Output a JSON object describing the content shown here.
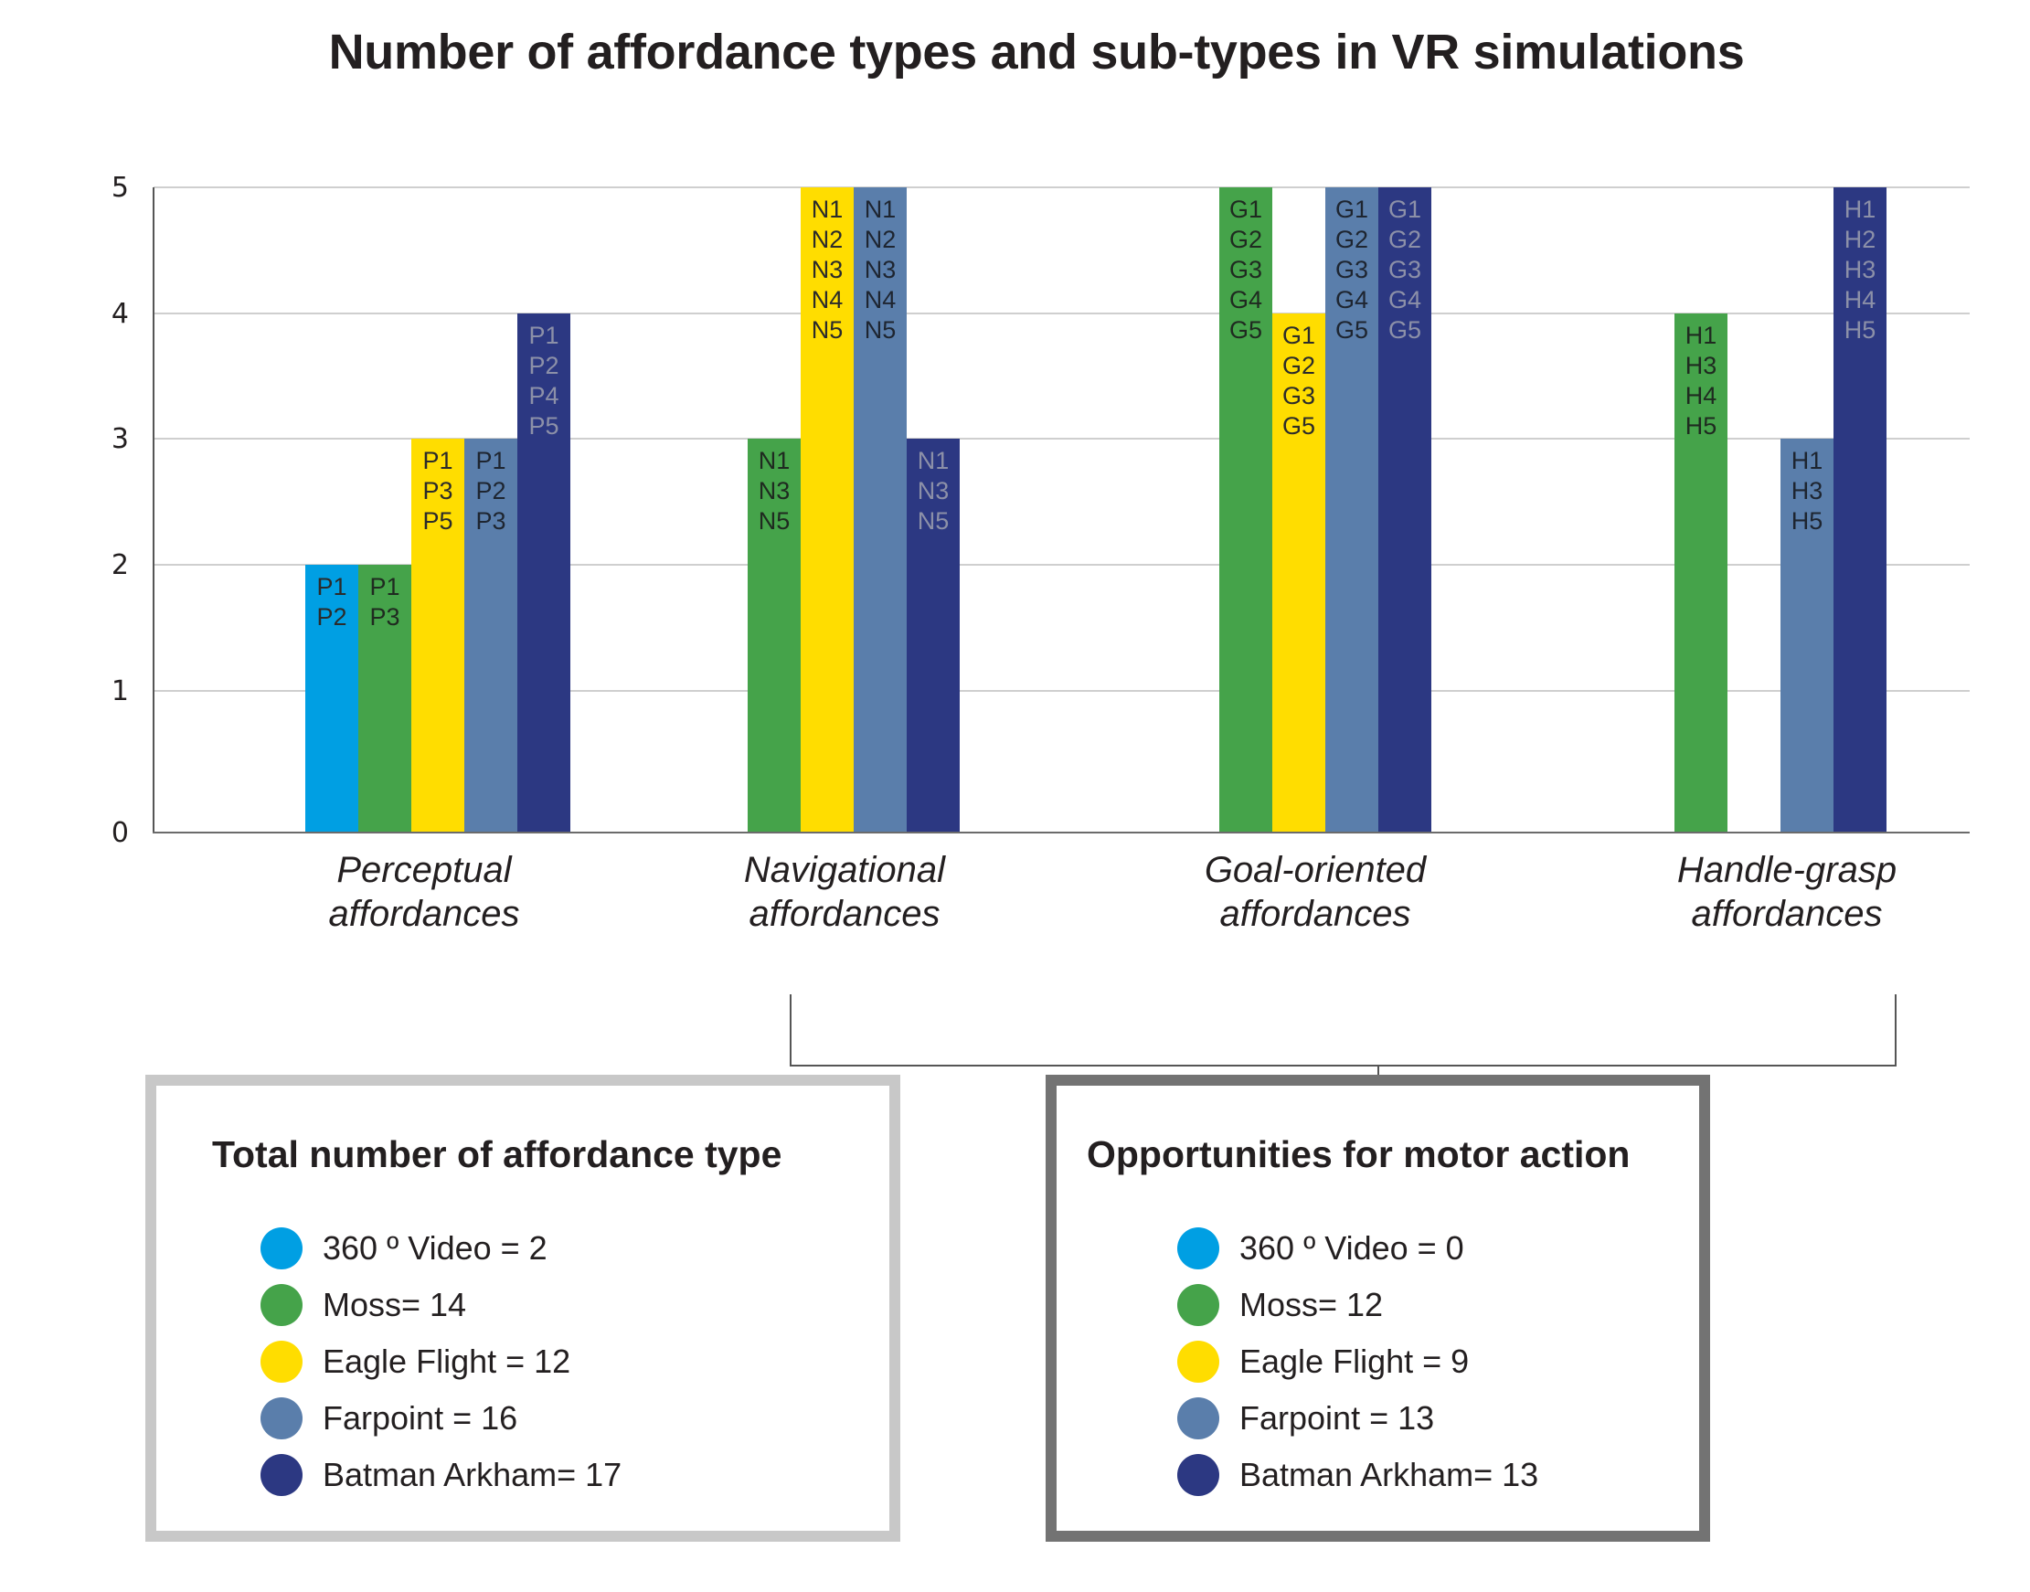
{
  "title": "Number of affordance types and sub-types in VR simulations",
  "chart_data": {
    "type": "bar",
    "title": "Number of affordance types and sub-types in VR simulations",
    "xlabel": "",
    "ylabel": "",
    "ylim": [
      0,
      5
    ],
    "yticks": [
      "0",
      "1",
      "2",
      "3",
      "4",
      "5"
    ],
    "grid": true,
    "categories": [
      [
        "Perceptual",
        "affordances"
      ],
      [
        "Navigational",
        "affordances"
      ],
      [
        "Goal-oriented",
        "affordances"
      ],
      [
        "Handle-grasp",
        "affordances"
      ]
    ],
    "series": [
      {
        "name": "360 º Video",
        "color": "#009fe3",
        "label_color": "#2b2b2b",
        "values": [
          2,
          0,
          0,
          0
        ],
        "subtypes": [
          [
            "P1",
            "P2"
          ],
          [],
          [],
          []
        ]
      },
      {
        "name": "Moss",
        "color": "#45a34a",
        "label_color": "#1f2a20",
        "values": [
          2,
          3,
          5,
          4
        ],
        "subtypes": [
          [
            "P1",
            "P3"
          ],
          [
            "N1",
            "N3",
            "N5"
          ],
          [
            "G1",
            "G2",
            "G3",
            "G4",
            "G5"
          ],
          [
            "H1",
            "H3",
            "H4",
            "H5"
          ]
        ]
      },
      {
        "name": "Eagle Flight",
        "color": "#ffdd00",
        "label_color": "#2b2b2b",
        "values": [
          3,
          5,
          4,
          0
        ],
        "subtypes": [
          [
            "P1",
            "P3",
            "P5"
          ],
          [
            "N1",
            "N2",
            "N3",
            "N4",
            "N5"
          ],
          [
            "G1",
            "G2",
            "G3",
            "G5"
          ],
          []
        ]
      },
      {
        "name": "Farpoint",
        "color": "#5a7eab",
        "label_color": "#1e2530",
        "values": [
          3,
          5,
          5,
          3
        ],
        "subtypes": [
          [
            "P1",
            "P2",
            "P3"
          ],
          [
            "N1",
            "N2",
            "N3",
            "N4",
            "N5"
          ],
          [
            "G1",
            "G2",
            "G3",
            "G4",
            "G5"
          ],
          [
            "H1",
            "H3",
            "H5"
          ]
        ]
      },
      {
        "name": "Batman Arkham",
        "color": "#2c3882",
        "label_color": "#8c90a8",
        "values": [
          4,
          3,
          5,
          5
        ],
        "subtypes": [
          [
            "P1",
            "P2",
            "P4",
            "P5"
          ],
          [
            "N1",
            "N3",
            "N5"
          ],
          [
            "G1",
            "G2",
            "G3",
            "G4",
            "G5"
          ],
          [
            "H1",
            "H2",
            "H3",
            "H4",
            "H5"
          ]
        ]
      }
    ],
    "bracket": {
      "spans_categories": [
        "Navigational affordances",
        "Goal-oriented affordances",
        "Handle-grasp affordances"
      ],
      "points_to": "Opportunities for motor action"
    }
  },
  "legend_total": {
    "title": "Total number of affordance type",
    "items": [
      {
        "label": "360 º Video = 2",
        "color": "#009fe3"
      },
      {
        "label": "Moss= 14",
        "color": "#45a34a"
      },
      {
        "label": "Eagle Flight = 12",
        "color": "#ffdd00"
      },
      {
        "label": "Farpoint = 16",
        "color": "#5a7eab"
      },
      {
        "label": "Batman Arkham= 17",
        "color": "#2c3882"
      }
    ]
  },
  "legend_motor": {
    "title": "Opportunities for motor action",
    "items": [
      {
        "label": "360 º Video = 0",
        "color": "#009fe3"
      },
      {
        "label": "Moss= 12",
        "color": "#45a34a"
      },
      {
        "label": "Eagle Flight = 9",
        "color": "#ffdd00"
      },
      {
        "label": "Farpoint = 13",
        "color": "#5a7eab"
      },
      {
        "label": "Batman Arkham= 13",
        "color": "#2c3882"
      }
    ]
  }
}
